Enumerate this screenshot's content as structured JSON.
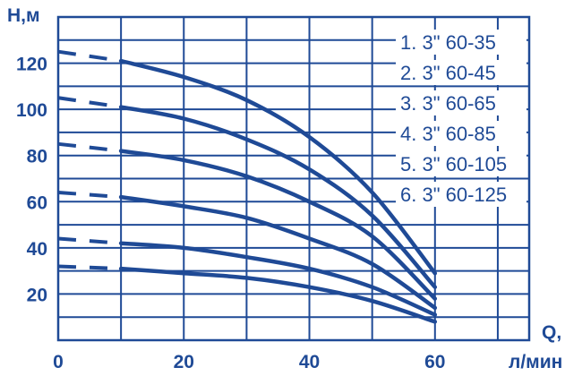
{
  "chart_data": {
    "type": "line",
    "x_axis_label": "Q,\nл/мин",
    "y_axis_label": "H,м",
    "xlim": [
      0,
      75
    ],
    "ylim": [
      0,
      140
    ],
    "x_ticks": [
      0,
      20,
      40,
      60
    ],
    "y_ticks": [
      20,
      40,
      60,
      80,
      100,
      120
    ],
    "grid": true,
    "legend_position": "top-right",
    "dashed_range_x": [
      0,
      10
    ],
    "series": [
      {
        "name": "1. 3\" 60-35",
        "x": [
          0,
          10,
          20,
          30,
          40,
          50,
          60
        ],
        "y": [
          32,
          31,
          29,
          27,
          23,
          17,
          8
        ]
      },
      {
        "name": "2. 3\" 60-45",
        "x": [
          0,
          10,
          20,
          30,
          40,
          50,
          60
        ],
        "y": [
          44,
          42,
          40,
          36,
          31,
          23,
          11
        ]
      },
      {
        "name": "3. 3\" 60-65",
        "x": [
          0,
          10,
          20,
          30,
          40,
          50,
          60
        ],
        "y": [
          64,
          62,
          58,
          53,
          44,
          33,
          14
        ]
      },
      {
        "name": "4. 3\" 60-85",
        "x": [
          0,
          10,
          20,
          30,
          40,
          50,
          60
        ],
        "y": [
          85,
          82,
          78,
          71,
          60,
          45,
          18
        ]
      },
      {
        "name": "5. 3\" 60-105",
        "x": [
          0,
          10,
          20,
          30,
          40,
          50,
          60
        ],
        "y": [
          105,
          101,
          96,
          87,
          74,
          54,
          23
        ]
      },
      {
        "name": "6. 3\" 60-125",
        "x": [
          0,
          10,
          20,
          30,
          40,
          50,
          60
        ],
        "y": [
          125,
          121,
          114,
          104,
          88,
          64,
          29
        ]
      }
    ]
  }
}
